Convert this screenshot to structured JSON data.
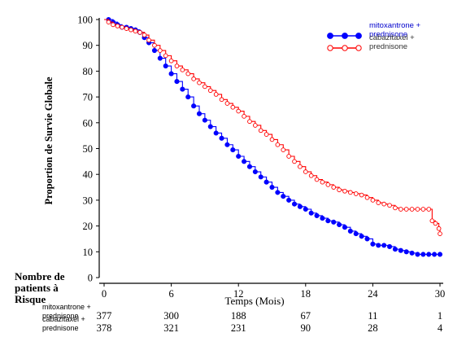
{
  "chart_data": {
    "type": "line",
    "xlabel": "Temps (Mois)",
    "ylabel": "Proportion de Survie Globale",
    "xlim": [
      0,
      30
    ],
    "ylim": [
      0,
      100
    ],
    "x_ticks": [
      "0",
      "6",
      "12",
      "18",
      "24",
      "30"
    ],
    "y_ticks": [
      "0",
      "10",
      "20",
      "30",
      "40",
      "50",
      "60",
      "70",
      "80",
      "90",
      "100"
    ],
    "legend_position": "top-right",
    "series": [
      {
        "name": "mitoxantrone + prednisone",
        "color": "#0000ff",
        "marker": "filled-circle",
        "x": [
          0,
          0.4,
          0.8,
          1.2,
          1.6,
          2.0,
          2.4,
          2.8,
          3.2,
          3.6,
          4.0,
          4.5,
          5.0,
          5.5,
          6.0,
          6.5,
          7.0,
          7.5,
          8.0,
          8.5,
          9.0,
          9.5,
          10.0,
          10.5,
          11.0,
          11.5,
          12.0,
          12.5,
          13.0,
          13.5,
          14.0,
          14.5,
          15.0,
          15.5,
          16.0,
          16.5,
          17.0,
          17.5,
          18.0,
          18.5,
          19.0,
          19.5,
          20.0,
          20.5,
          21.0,
          21.5,
          22.0,
          22.5,
          23.0,
          23.5,
          24.0,
          24.5,
          25.0,
          25.5,
          26.0,
          26.5,
          27.0,
          27.5,
          28.0,
          28.5,
          29.0,
          29.5,
          30.0
        ],
        "y": [
          100,
          100,
          99,
          98,
          97,
          97,
          96.5,
          96,
          95,
          93,
          91,
          88,
          85,
          82,
          79,
          76,
          73,
          70,
          66.5,
          63.5,
          61,
          58.5,
          56,
          54,
          51.5,
          49.5,
          47,
          45,
          43,
          41,
          39,
          37,
          35,
          33,
          31.5,
          30,
          28.5,
          27.5,
          26.5,
          25,
          24,
          23,
          22,
          21.5,
          20.5,
          19.5,
          18,
          17,
          16,
          15,
          13,
          12.5,
          12.5,
          12,
          11,
          10.5,
          10,
          9.5,
          9,
          9,
          9,
          9,
          9
        ]
      },
      {
        "name": "cabazitaxel + prednisone",
        "color": "#ff0000",
        "marker": "open-circle",
        "x": [
          0,
          0.4,
          0.8,
          1.2,
          1.6,
          2.0,
          2.4,
          2.8,
          3.2,
          3.6,
          4.0,
          4.5,
          5.0,
          5.5,
          6.0,
          6.5,
          7.0,
          7.5,
          8.0,
          8.5,
          9.0,
          9.5,
          10.0,
          10.5,
          11.0,
          11.5,
          12.0,
          12.5,
          13.0,
          13.5,
          14.0,
          14.5,
          15.0,
          15.5,
          16.0,
          16.5,
          17.0,
          17.5,
          18.0,
          18.5,
          19.0,
          19.5,
          20.0,
          20.5,
          21.0,
          21.5,
          22.0,
          22.5,
          23.0,
          23.5,
          24.0,
          24.5,
          25.0,
          25.5,
          26.0,
          26.5,
          27.0,
          27.5,
          28.0,
          28.5,
          29.0,
          29.3,
          29.6,
          29.9,
          30.0
        ],
        "y": [
          100,
          99,
          98,
          97.5,
          97,
          96.5,
          96,
          95.5,
          95,
          94,
          92,
          90,
          88,
          86,
          84,
          82,
          80.5,
          79,
          77,
          75.5,
          74,
          72.5,
          71,
          69,
          67.5,
          66,
          64.5,
          62.5,
          60.5,
          59,
          57,
          55.5,
          53.5,
          51.5,
          49.5,
          47,
          45,
          43,
          41,
          39.5,
          38,
          37,
          36,
          35,
          34,
          33.5,
          33,
          32.5,
          32,
          31,
          30,
          29,
          28.5,
          28,
          27,
          26.5,
          26.5,
          26.5,
          26.5,
          26.5,
          26.5,
          22,
          21,
          19,
          17
        ]
      }
    ],
    "risk_table": {
      "title_lines": [
        "Nombre de",
        "patients à",
        "Risque"
      ],
      "x_values": [
        0,
        6,
        12,
        18,
        24,
        30
      ],
      "rows": [
        {
          "label_lines": [
            "mitoxantrone +",
            "prednisone"
          ],
          "counts": [
            "377",
            "300",
            "188",
            "67",
            "11",
            "1"
          ]
        },
        {
          "label_lines": [
            "cabazitaxel +",
            "prednisone"
          ],
          "counts": [
            "378",
            "321",
            "231",
            "90",
            "28",
            "4"
          ]
        }
      ]
    }
  }
}
